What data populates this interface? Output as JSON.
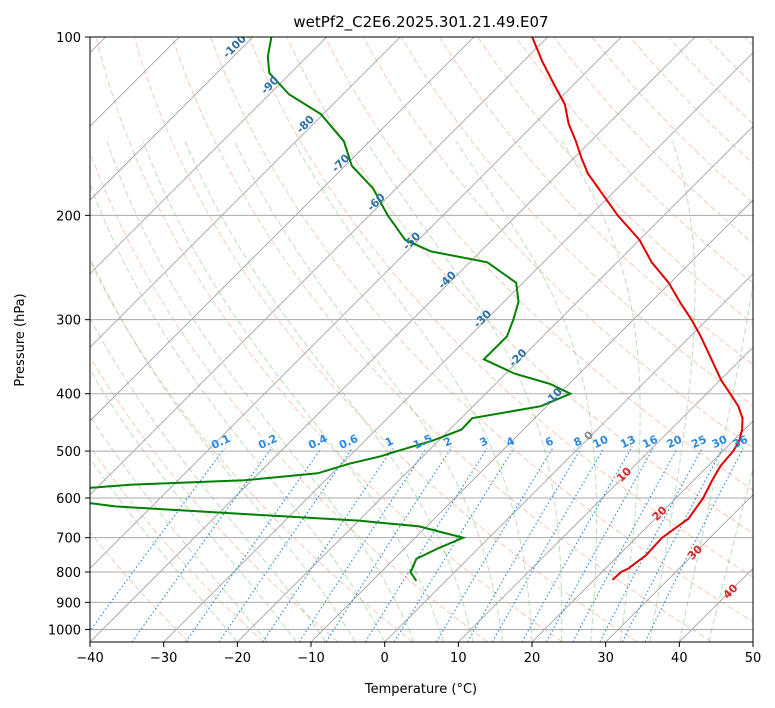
{
  "chart_data": {
    "type": "line",
    "title": "wetPf2_C2E6.2025.301.21.49.E07",
    "xlabel": "Temperature (°C)",
    "ylabel": "Pressure (hPa)",
    "xlim": [
      -40,
      50
    ],
    "ylim": [
      1050,
      100
    ],
    "y_scale": "log",
    "grid": true,
    "x_ticks": [
      -40,
      -30,
      -20,
      -10,
      0,
      10,
      20,
      30,
      40,
      50
    ],
    "y_ticks": [
      1000,
      900,
      800,
      700,
      600,
      500,
      400,
      300,
      200,
      100
    ],
    "skew": true,
    "series": [
      {
        "color": "#e00000",
        "pressure": [
          825,
          800,
          790,
          750,
          700,
          650,
          600,
          560,
          530,
          500,
          480,
          460,
          440,
          420,
          400,
          380,
          350,
          320,
          300,
          280,
          260,
          240,
          220,
          200,
          180,
          170,
          160,
          150,
          140,
          130,
          120,
          110,
          100
        ],
        "values": [
          22.5,
          22.6,
          23.1,
          23.7,
          23.5,
          24.5,
          23.7,
          22.5,
          21.7,
          21.4,
          20.8,
          19.7,
          18.2,
          16.0,
          13.2,
          10.2,
          6.0,
          1.4,
          -2.1,
          -6.1,
          -10.2,
          -15.3,
          -20.0,
          -26.3,
          -32.6,
          -36.0,
          -39.0,
          -42.0,
          -45.4,
          -48.5,
          -52.8,
          -57.4,
          -62.1
        ]
      },
      {
        "color": "#008000",
        "pressure": [
          828,
          800,
          790,
          760,
          730,
          700,
          690,
          670,
          655,
          640,
          620,
          590,
          570,
          560,
          545,
          525,
          510,
          500,
          480,
          460,
          440,
          420,
          400,
          385,
          370,
          350,
          320,
          300,
          280,
          260,
          240,
          230,
          220,
          200,
          180,
          165,
          150,
          135,
          125,
          115,
          108,
          100
        ],
        "values": [
          -4,
          -6,
          -6.2,
          -7,
          -5.5,
          -3.5,
          -6,
          -11,
          -20,
          -35,
          -55,
          -70,
          -56,
          -41,
          -32,
          -29,
          -25.7,
          -24.2,
          -20.8,
          -18.4,
          -18.5,
          -10.8,
          -8.5,
          -12.6,
          -18.8,
          -24.9,
          -24.9,
          -26.3,
          -28.0,
          -30.9,
          -37.6,
          -46.8,
          -51.8,
          -57.5,
          -63.2,
          -69.1,
          -73.5,
          -80.3,
          -87.3,
          -92.9,
          -95.3,
          -97.5
        ]
      }
    ],
    "mixing_ratio_labels": [
      "0.1",
      "0.2",
      "0.4",
      "0.6",
      "1",
      "1.5",
      "2",
      "3",
      "4",
      "6",
      "8",
      "10",
      "13",
      "16",
      "20",
      "25",
      "30",
      "36"
    ],
    "dry_adiabat_labels": [
      "-100",
      "-90",
      "-80",
      "-70",
      "-60",
      "-50",
      "-40",
      "-30",
      "-20",
      "-10",
      "0",
      "10",
      "20",
      "30",
      "40"
    ]
  }
}
